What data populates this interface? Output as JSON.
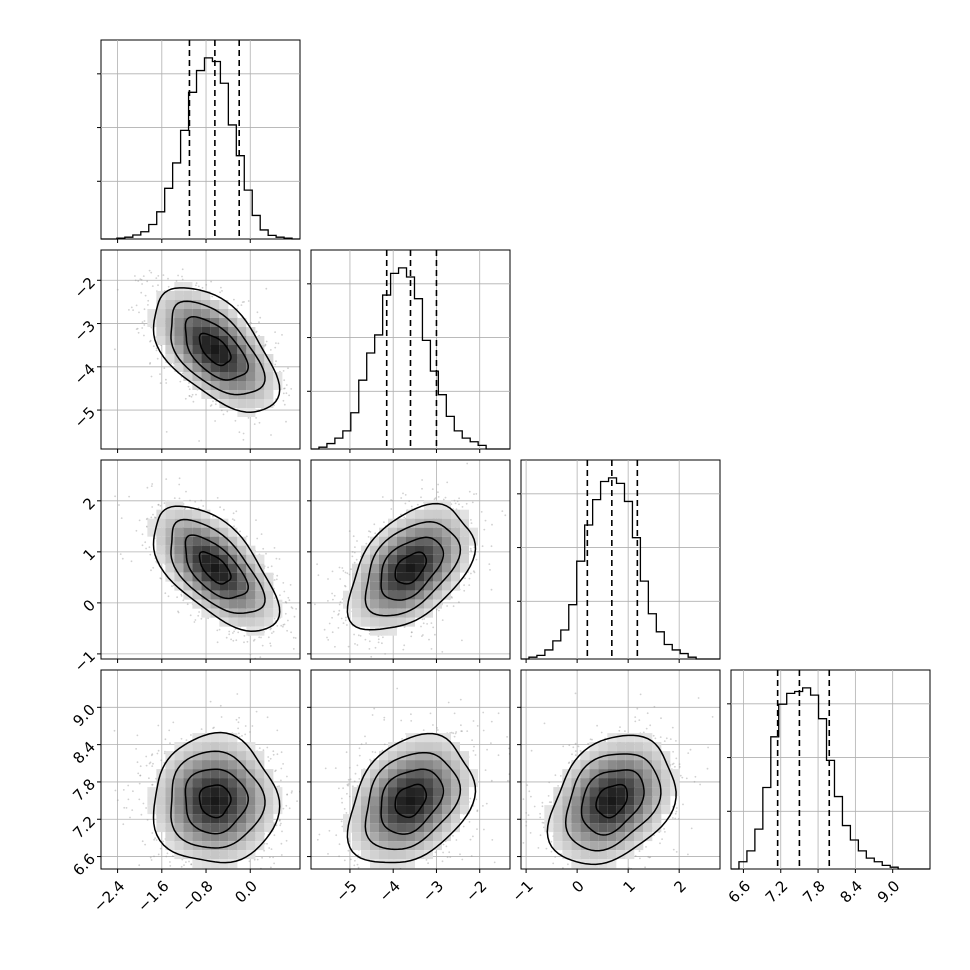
{
  "chart_data": {
    "type": "corner",
    "params": [
      {
        "range": [
          -2.7,
          0.9
        ],
        "ticks": [
          -2.4,
          -1.6,
          -0.8,
          0.0
        ],
        "tick_labels": [
          "−2.4",
          "−1.6",
          "−0.8",
          "0.0"
        ],
        "quantiles": [
          -1.1,
          -0.64,
          -0.2
        ],
        "hist": [
          0.0,
          0.0,
          0.005,
          0.01,
          0.022,
          0.04,
          0.08,
          0.15,
          0.28,
          0.42,
          0.6,
          0.81,
          0.93,
          1.0,
          0.98,
          0.86,
          0.63,
          0.46,
          0.27,
          0.13,
          0.05,
          0.02,
          0.01,
          0.005,
          0.0
        ]
      },
      {
        "range": [
          -5.9,
          -1.3
        ],
        "ticks": [
          -5,
          -4,
          -3,
          -2
        ],
        "tick_labels": [
          "−5",
          "−4",
          "−3",
          "−2"
        ],
        "quantiles": [
          -4.15,
          -3.6,
          -3.0
        ],
        "hist": [
          0.0,
          0.01,
          0.03,
          0.06,
          0.1,
          0.2,
          0.38,
          0.53,
          0.63,
          0.85,
          0.97,
          1.0,
          0.95,
          0.83,
          0.6,
          0.43,
          0.3,
          0.18,
          0.1,
          0.06,
          0.04,
          0.02,
          0.0,
          0.0,
          0.0
        ]
      },
      {
        "range": [
          -1.1,
          2.8
        ],
        "ticks": [
          -1,
          0,
          1,
          2
        ],
        "tick_labels": [
          "−1",
          "0",
          "1",
          "2"
        ],
        "quantiles": [
          0.2,
          0.68,
          1.18
        ],
        "hist": [
          0.0,
          0.01,
          0.02,
          0.05,
          0.1,
          0.16,
          0.3,
          0.54,
          0.74,
          0.88,
          0.98,
          1.0,
          0.97,
          0.87,
          0.67,
          0.43,
          0.25,
          0.15,
          0.08,
          0.05,
          0.03,
          0.01,
          0.0,
          0.0,
          0.0
        ]
      },
      {
        "range": [
          6.4,
          9.6
        ],
        "ticks": [
          6.6,
          7.2,
          7.8,
          8.4,
          9.0
        ],
        "tick_labels": [
          "6.6",
          "7.2",
          "7.8",
          "8.4",
          "9.0"
        ],
        "quantiles": [
          7.15,
          7.5,
          7.98
        ],
        "hist": [
          0.0,
          0.04,
          0.1,
          0.22,
          0.45,
          0.73,
          0.91,
          0.97,
          0.98,
          1.0,
          0.96,
          0.83,
          0.6,
          0.4,
          0.24,
          0.16,
          0.1,
          0.06,
          0.04,
          0.02,
          0.01,
          0.0,
          0.0,
          0.0,
          0.0
        ]
      }
    ],
    "pairs": [
      {
        "x": 0,
        "y": 1,
        "corr": -0.55
      },
      {
        "x": 0,
        "y": 2,
        "corr": -0.6
      },
      {
        "x": 1,
        "y": 2,
        "corr": 0.45
      },
      {
        "x": 0,
        "y": 3,
        "corr": 0.0
      },
      {
        "x": 1,
        "y": 3,
        "corr": 0.3
      },
      {
        "x": 2,
        "y": 3,
        "corr": 0.3
      }
    ],
    "contour_levels_sigma": [
      0.5,
      1.0,
      1.5,
      2.0
    ],
    "grid": true
  }
}
